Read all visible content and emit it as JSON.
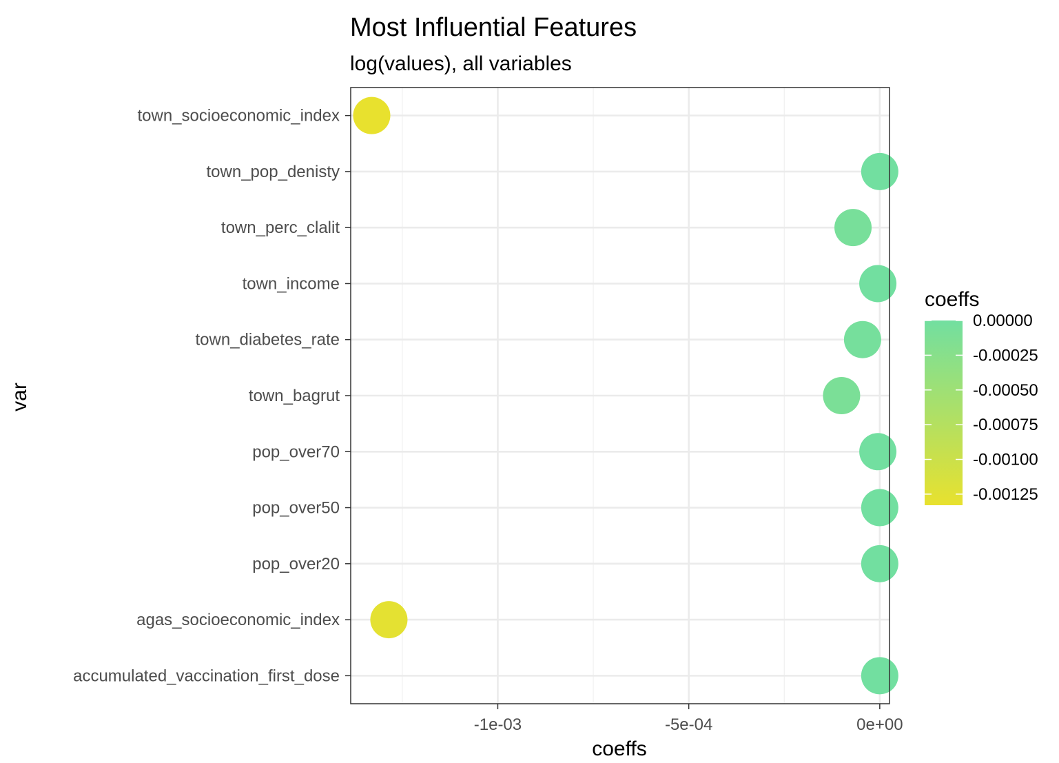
{
  "chart_data": {
    "type": "scatter",
    "title": "Most Influential Features",
    "subtitle": "log(values), all variables",
    "xlabel": "coeffs",
    "ylabel": "var",
    "xlim": [
      -0.001385,
      2.55e-05
    ],
    "x_ticks": [
      {
        "value": -0.001,
        "label": "-1e-03"
      },
      {
        "value": -0.0005,
        "label": "-5e-04"
      },
      {
        "value": 0,
        "label": "0e+00"
      }
    ],
    "grid": true,
    "categories": [
      "town_socioeconomic_index",
      "town_pop_denisty",
      "town_perc_clalit",
      "town_income",
      "town_diabetes_rate",
      "town_bagrut",
      "pop_over70",
      "pop_over50",
      "pop_over20",
      "agas_socioeconomic_index",
      "accumulated_vaccination_first_dose"
    ],
    "values": [
      -0.00133,
      0.0,
      -7e-05,
      -5e-06,
      -4.5e-05,
      -0.0001,
      -5e-06,
      0.0,
      0.0,
      -0.001285,
      0.0
    ],
    "legend": {
      "title": "coeffs",
      "placement": "right",
      "color_low": "#e8e12e",
      "color_high": "#72dfa0",
      "range": [
        -0.00133,
        0.0
      ],
      "ticks": [
        {
          "value": 0.0,
          "label": "0.00000"
        },
        {
          "value": -0.00025,
          "label": "-0.00025"
        },
        {
          "value": -0.0005,
          "label": "-0.00050"
        },
        {
          "value": -0.00075,
          "label": "-0.00075"
        },
        {
          "value": -0.001,
          "label": "-0.00100"
        },
        {
          "value": -0.00125,
          "label": "-0.00125"
        }
      ]
    }
  }
}
